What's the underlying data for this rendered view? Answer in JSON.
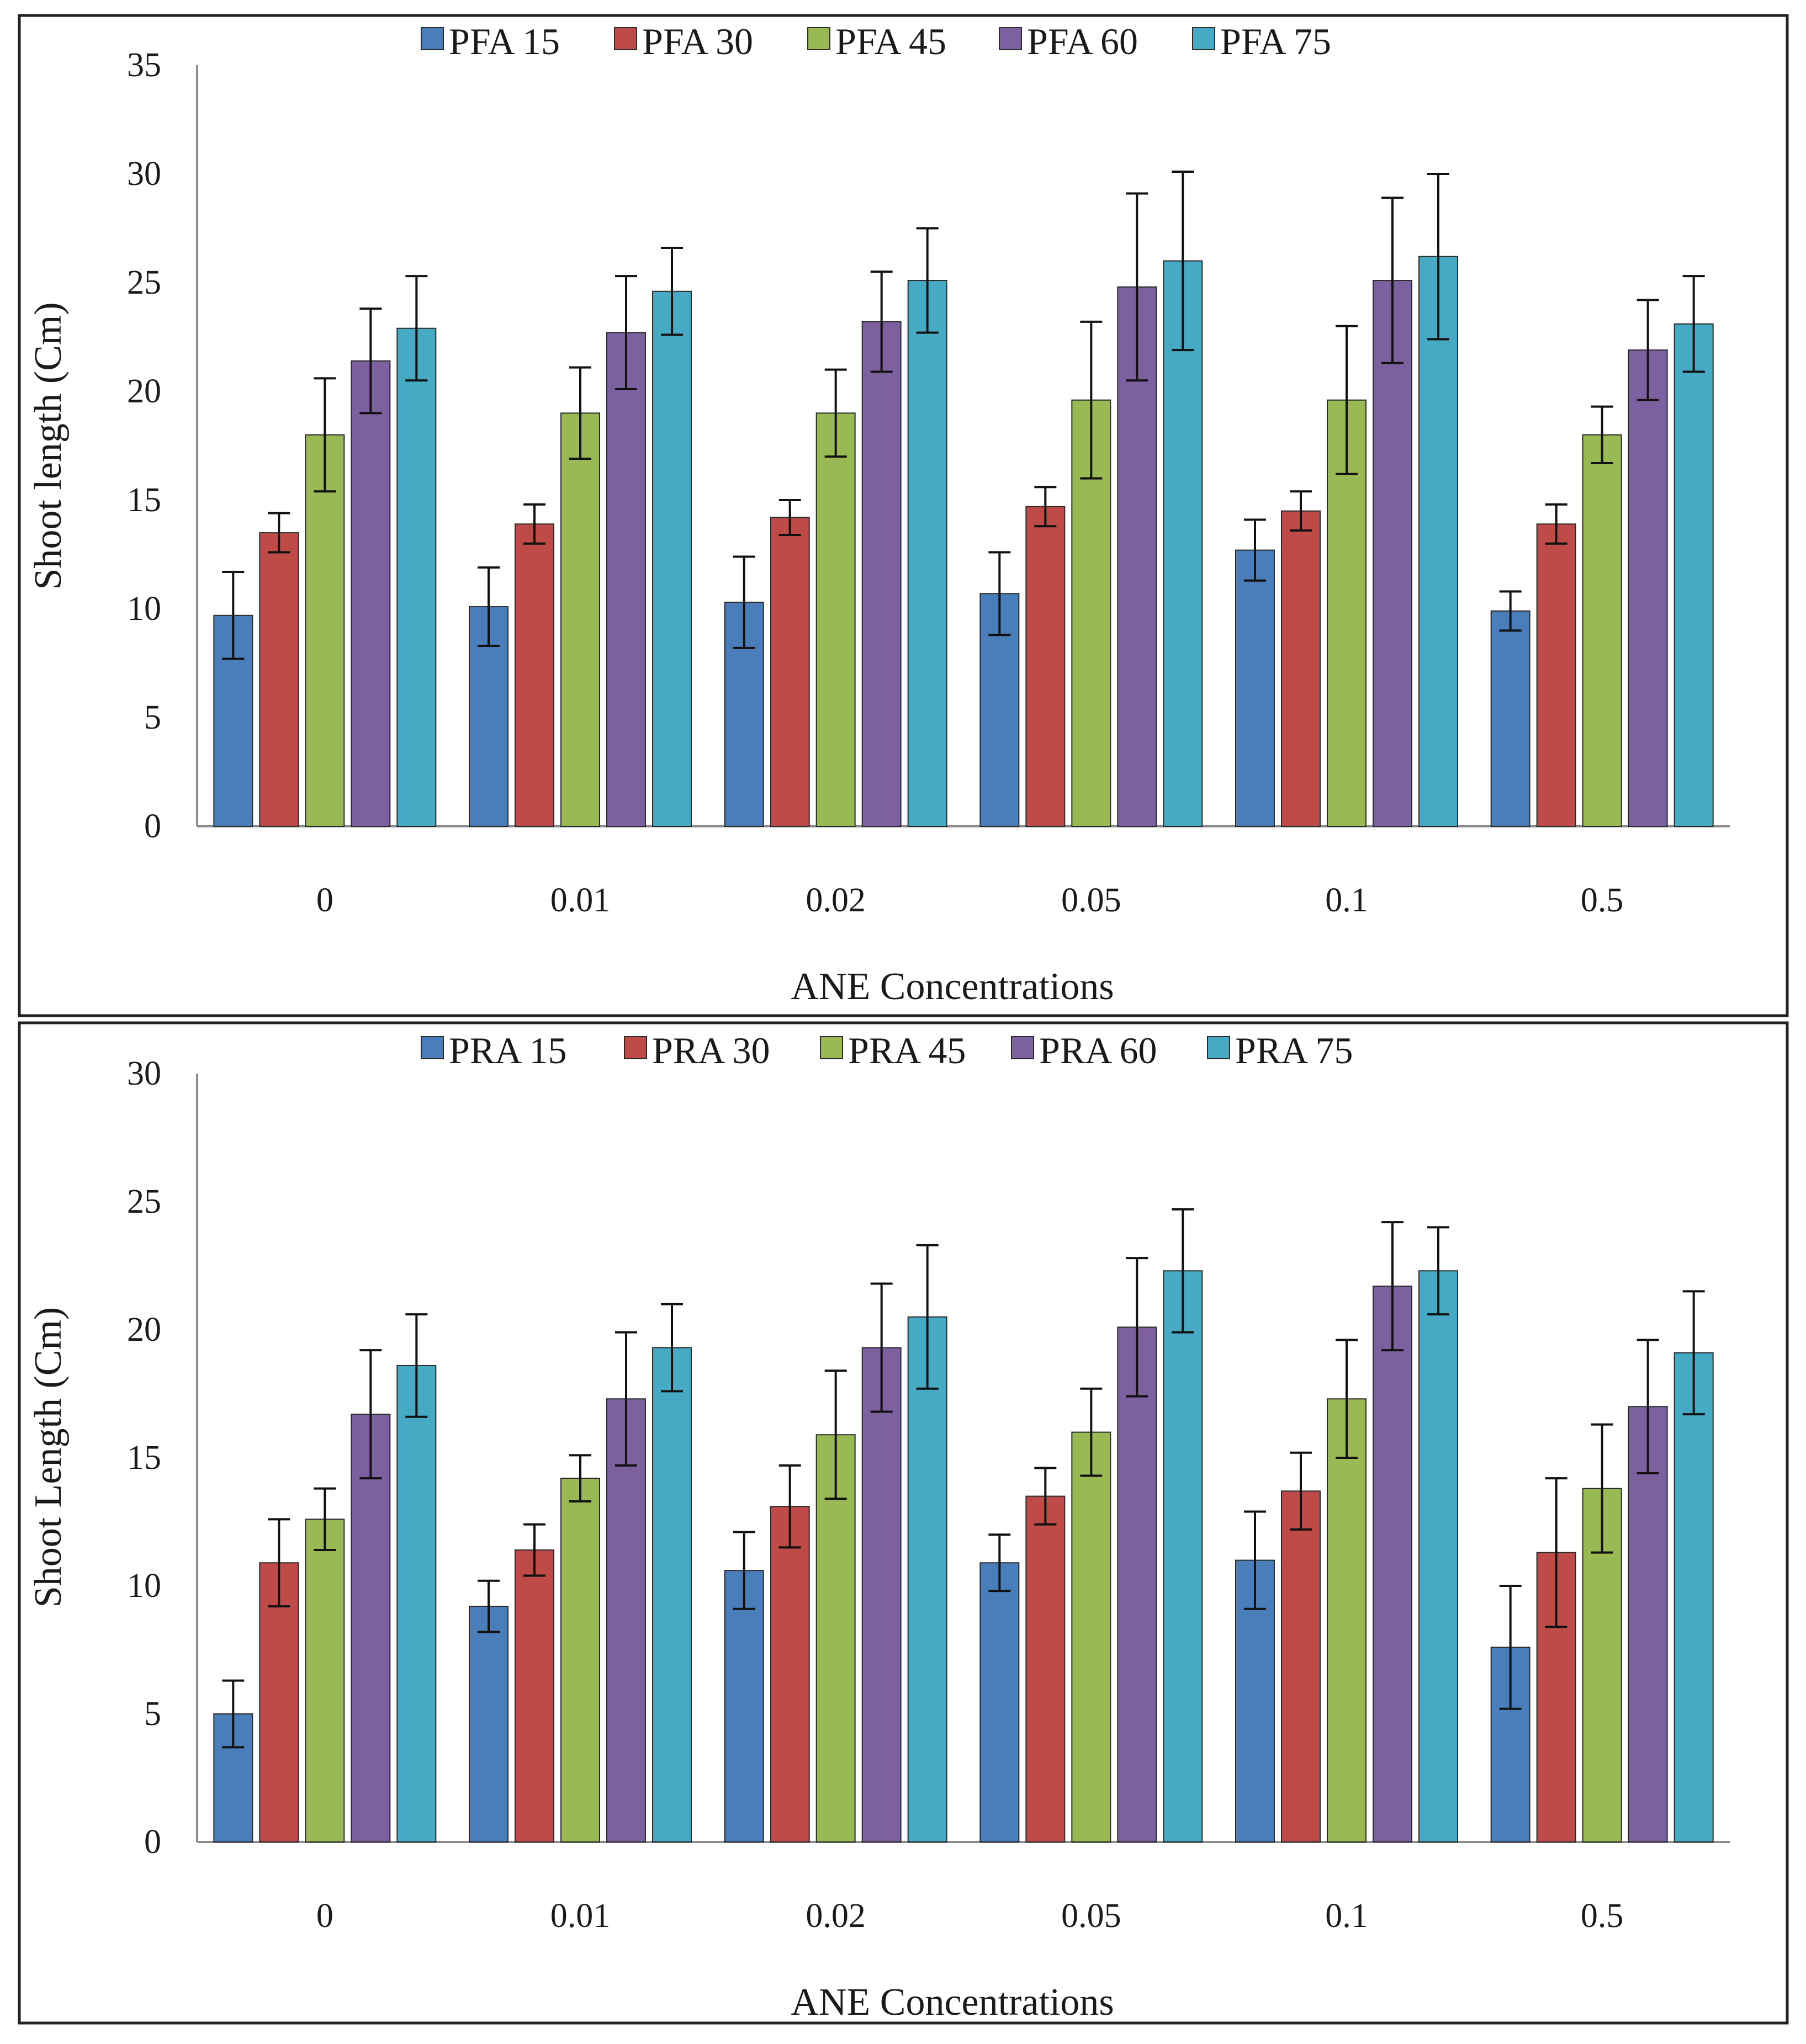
{
  "chart_data": [
    {
      "type": "bar",
      "title": "",
      "xlabel": "ANE Concentrations",
      "ylabel": "Shoot length (Cm)",
      "ylim": [
        0,
        35
      ],
      "yticks": [
        0,
        5,
        10,
        15,
        20,
        25,
        30,
        35
      ],
      "categories": [
        "0",
        "0.01",
        "0.02",
        "0.05",
        "0.1",
        "0.5"
      ],
      "legend_position": "top",
      "grid": false,
      "series": [
        {
          "name": "PFA 15",
          "color": "#4a7ebb",
          "values": [
            9.7,
            10.1,
            10.3,
            10.7,
            12.7,
            9.9
          ],
          "errors": [
            2.0,
            1.8,
            2.1,
            1.9,
            1.4,
            0.9
          ]
        },
        {
          "name": "PFA 30",
          "color": "#be4b48",
          "values": [
            13.5,
            13.9,
            14.2,
            14.7,
            14.5,
            13.9
          ],
          "errors": [
            0.9,
            0.9,
            0.8,
            0.9,
            0.9,
            0.9
          ]
        },
        {
          "name": "PFA 45",
          "color": "#98b954",
          "values": [
            18.0,
            19.0,
            19.0,
            19.6,
            19.6,
            18.0
          ],
          "errors": [
            2.6,
            2.1,
            2.0,
            3.6,
            3.4,
            1.3
          ]
        },
        {
          "name": "PFA 60",
          "color": "#7d60a0",
          "values": [
            21.4,
            22.7,
            23.2,
            24.8,
            25.1,
            21.9
          ],
          "errors": [
            2.4,
            2.6,
            2.3,
            4.3,
            3.8,
            2.3
          ]
        },
        {
          "name": "PFA 75",
          "color": "#46aac5",
          "values": [
            22.9,
            24.6,
            25.1,
            26.0,
            26.2,
            23.1
          ],
          "errors": [
            2.4,
            2.0,
            2.4,
            4.1,
            3.8,
            2.2
          ]
        }
      ]
    },
    {
      "type": "bar",
      "title": "",
      "xlabel": "ANE Concentrations",
      "ylabel": "Shoot Length (Cm)",
      "ylim": [
        0,
        30
      ],
      "yticks": [
        0,
        5,
        10,
        15,
        20,
        25,
        30
      ],
      "categories": [
        "0",
        "0.01",
        "0.02",
        "0.05",
        "0.1",
        "0.5"
      ],
      "legend_position": "top",
      "grid": false,
      "series": [
        {
          "name": "PRA 15",
          "color": "#4a7ebb",
          "values": [
            5.0,
            9.2,
            10.6,
            10.9,
            11.0,
            7.6
          ],
          "errors": [
            1.3,
            1.0,
            1.5,
            1.1,
            1.9,
            2.4
          ]
        },
        {
          "name": "PRA 30",
          "color": "#be4b48",
          "values": [
            10.9,
            11.4,
            13.1,
            13.5,
            13.7,
            11.3
          ],
          "errors": [
            1.7,
            1.0,
            1.6,
            1.1,
            1.5,
            2.9
          ]
        },
        {
          "name": "PRA 45",
          "color": "#98b954",
          "values": [
            12.6,
            14.2,
            15.9,
            16.0,
            17.3,
            13.8
          ],
          "errors": [
            1.2,
            0.9,
            2.5,
            1.7,
            2.3,
            2.5
          ]
        },
        {
          "name": "PRA 60",
          "color": "#7d60a0",
          "values": [
            16.7,
            17.3,
            19.3,
            20.1,
            21.7,
            17.0
          ],
          "errors": [
            2.5,
            2.6,
            2.5,
            2.7,
            2.5,
            2.6
          ]
        },
        {
          "name": "PRA 75",
          "color": "#46aac5",
          "values": [
            18.6,
            19.3,
            20.5,
            22.3,
            22.3,
            19.1
          ],
          "errors": [
            2.0,
            1.7,
            2.8,
            2.4,
            1.7,
            2.4
          ]
        }
      ]
    }
  ]
}
